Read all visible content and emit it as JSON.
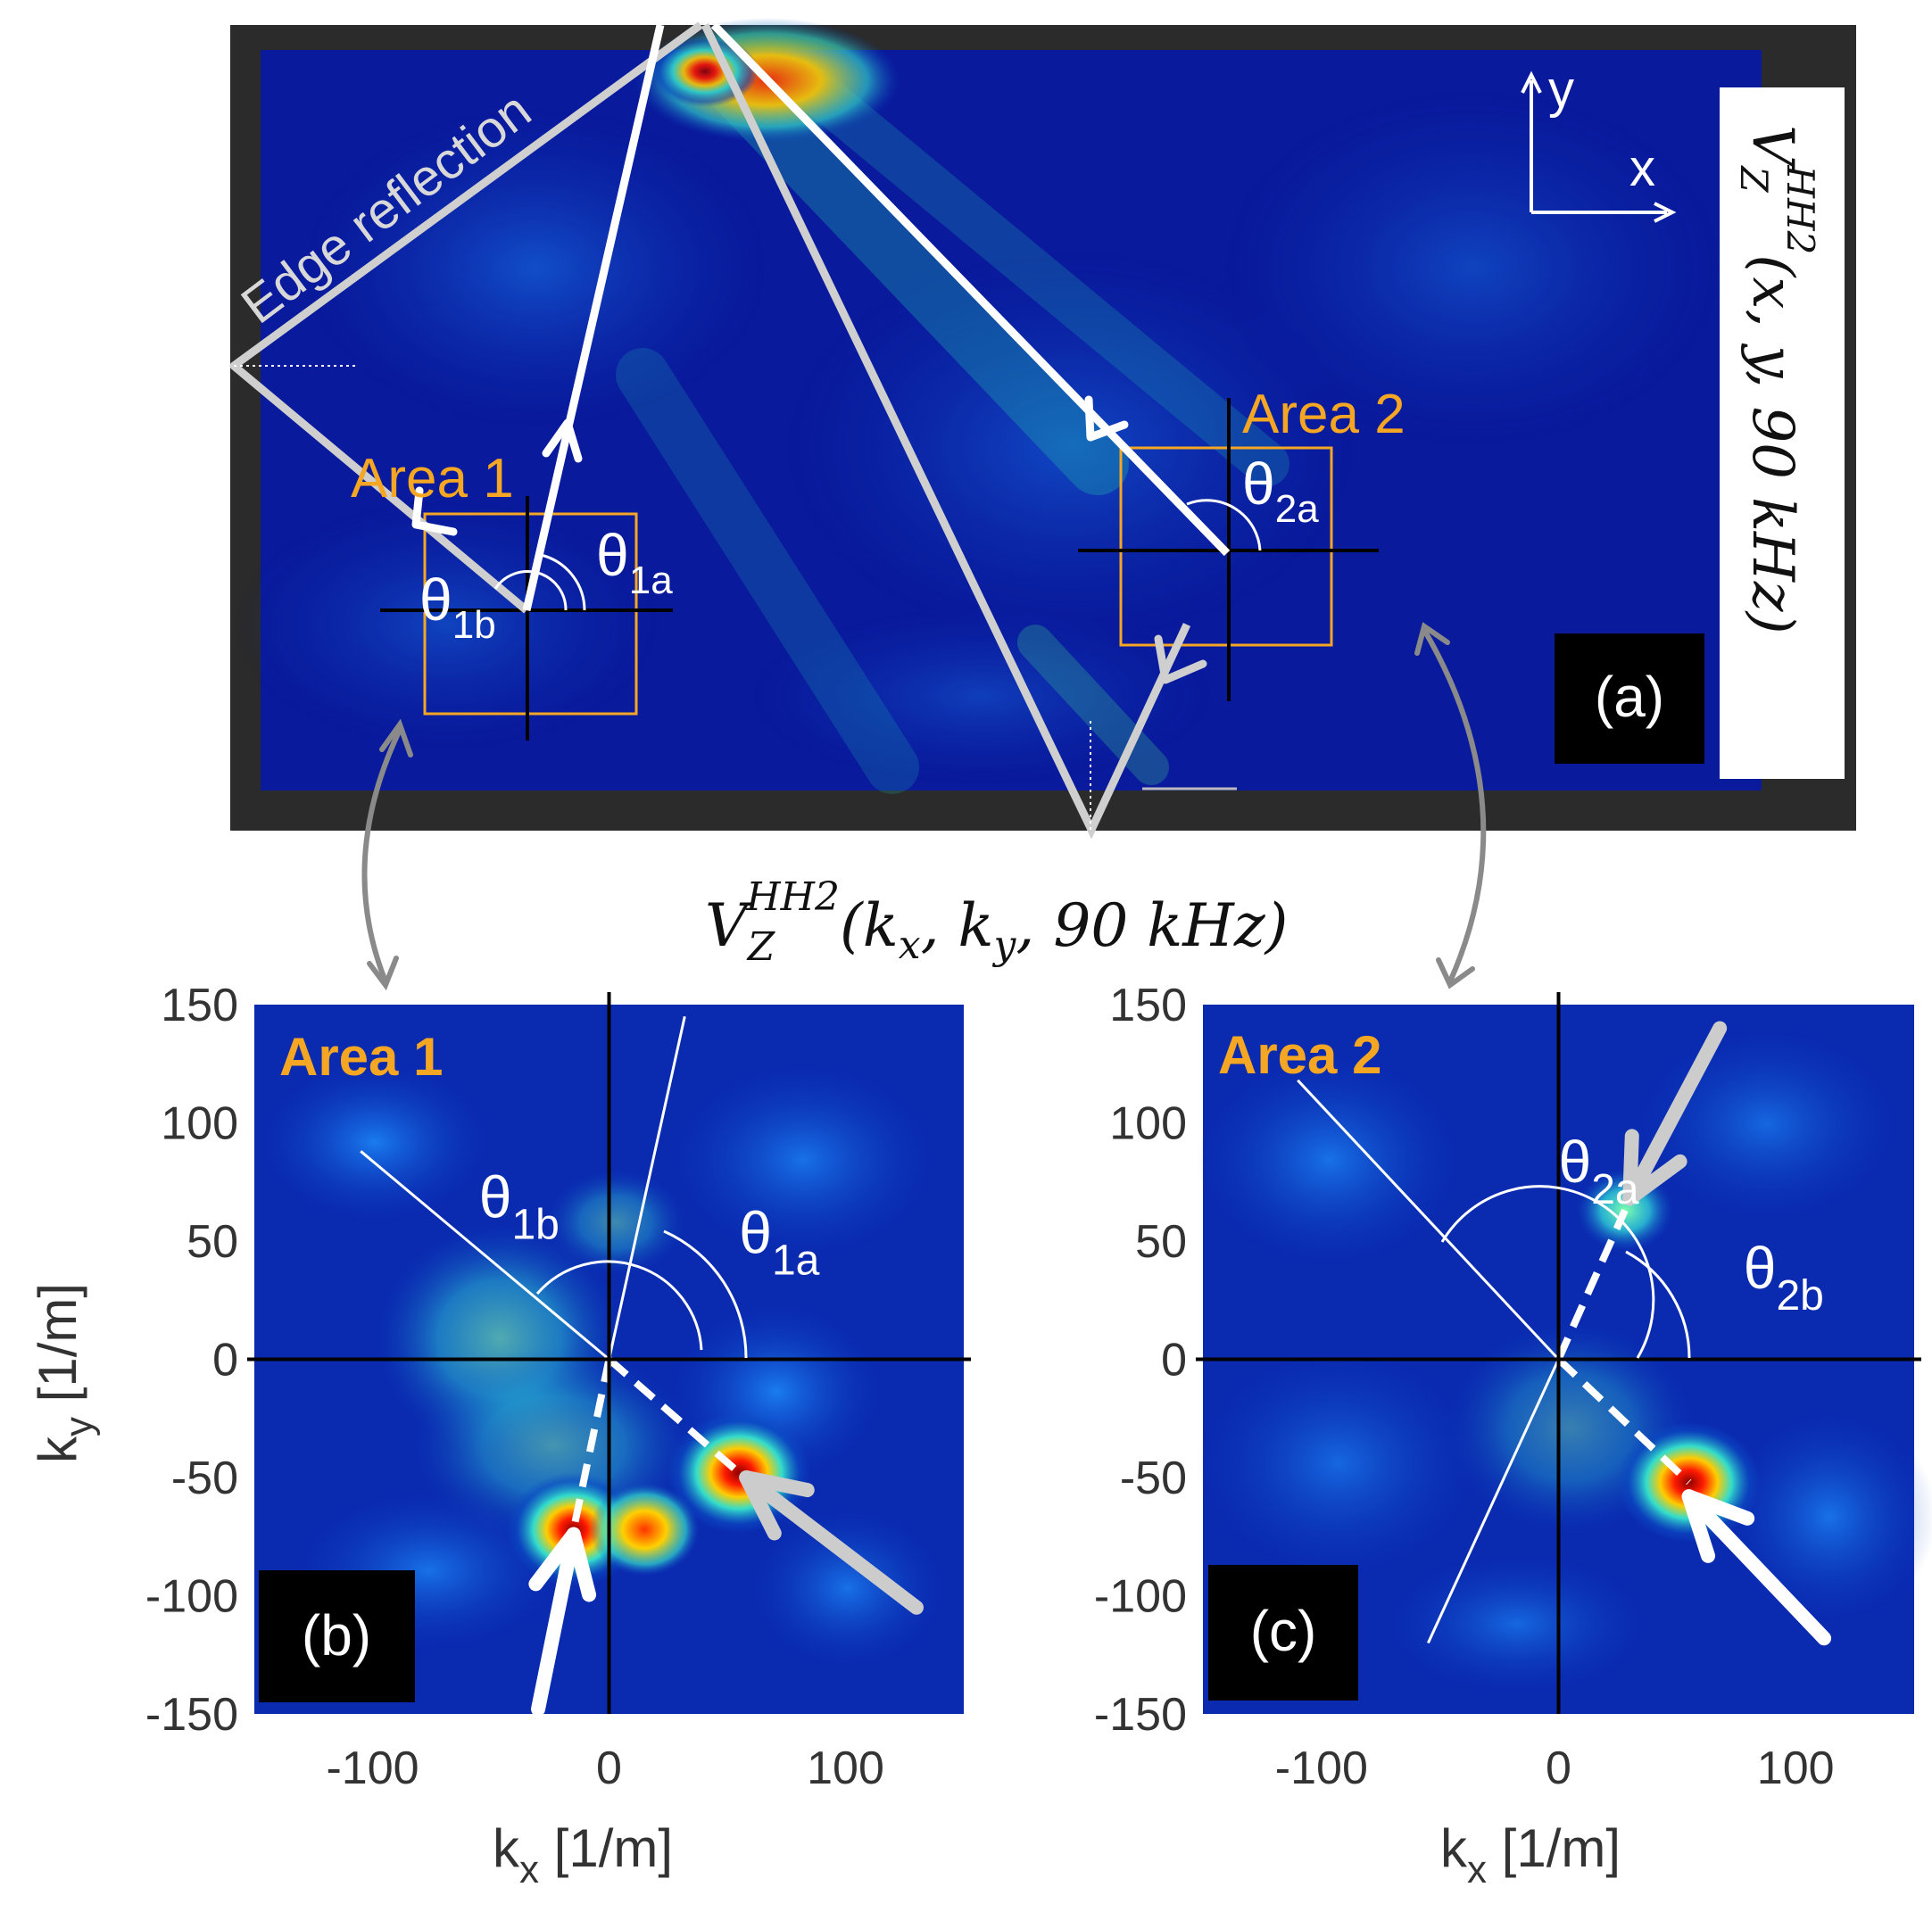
{
  "panel_a": {
    "label": "(a)",
    "formula_main": "V",
    "formula_sub": "Z",
    "formula_sup": "HH2",
    "formula_args": "(x, y, 90 kHz)",
    "edge_reflection": "Edge reflection",
    "area1": "Area 1",
    "area2": "Area 2",
    "axis_x": "x",
    "axis_y": "y",
    "theta_1a": "θ",
    "theta_1a_sub": "1a",
    "theta_1b": "θ",
    "theta_1b_sub": "1b",
    "theta_2a": "θ",
    "theta_2a_sub": "2a"
  },
  "middle_formula": {
    "main": "V",
    "sub": "Z",
    "sup": "HH2",
    "args": "(k",
    "arg_x_sub": "x",
    "sep": ", k",
    "arg_y_sub": "y",
    "tail": ", 90 kHz)"
  },
  "colors": {
    "bg_dark": "#00008f",
    "accent_orange": "#f5a623",
    "arrow_white": "#ffffff",
    "arrow_grey": "#cccccc",
    "frame": "#2b2b2b"
  },
  "chart_data": [
    {
      "type": "heatmap",
      "panel": "(b)",
      "title": "Area 1",
      "xlabel": "k",
      "xlabel_sub": "x",
      "xlabel_unit": " [1/m]",
      "ylabel": "k",
      "ylabel_sub": "y",
      "ylabel_unit": " [1/m]",
      "xlim": [
        -150,
        150
      ],
      "ylim": [
        -150,
        150
      ],
      "xticks": [
        "-100",
        "0",
        "100"
      ],
      "xtick_values": [
        -100,
        0,
        100
      ],
      "yticks": [
        "150",
        "100",
        "50",
        "0",
        "-50",
        "-100",
        "-150"
      ],
      "ytick_values": [
        150,
        100,
        50,
        0,
        -50,
        -100,
        -150
      ],
      "peaks": [
        {
          "kx": 55,
          "ky": -48,
          "strength": 1.0
        },
        {
          "kx": -15,
          "ky": -72,
          "strength": 0.9
        },
        {
          "kx": 15,
          "ky": -72,
          "strength": 0.6
        }
      ],
      "theta_labels": [
        {
          "text": "θ",
          "sub": "1b",
          "kx": -55,
          "ky": 60
        },
        {
          "text": "θ",
          "sub": "1a",
          "kx": 55,
          "ky": 45
        }
      ],
      "lines": [
        {
          "from": [
            -105,
            88
          ],
          "to": [
            0,
            0
          ],
          "style": "solid"
        },
        {
          "from": [
            0,
            0
          ],
          "to": [
            32,
            145
          ],
          "style": "solid"
        },
        {
          "from": [
            0,
            0
          ],
          "to": [
            55,
            -48
          ],
          "style": "dashed"
        },
        {
          "from": [
            0,
            0
          ],
          "to": [
            -15,
            -72
          ],
          "style": "dashed"
        }
      ],
      "arrows": [
        {
          "from": [
            130,
            -105
          ],
          "to": [
            58,
            -50
          ],
          "color": "grey"
        },
        {
          "from": [
            -30,
            -148
          ],
          "to": [
            -15,
            -74
          ],
          "color": "white"
        }
      ]
    },
    {
      "type": "heatmap",
      "panel": "(c)",
      "title": "Area 2",
      "xlabel": "k",
      "xlabel_sub": "x",
      "xlabel_unit": " [1/m]",
      "xlim": [
        -150,
        150
      ],
      "ylim": [
        -150,
        150
      ],
      "xticks": [
        "-100",
        "0",
        "100"
      ],
      "xtick_values": [
        -100,
        0,
        100
      ],
      "yticks": [
        "150",
        "100",
        "50",
        "0",
        "-50",
        "-100",
        "-150"
      ],
      "ytick_values": [
        150,
        100,
        50,
        0,
        -50,
        -100,
        -150
      ],
      "peaks": [
        {
          "kx": 55,
          "ky": -52,
          "strength": 1.0
        },
        {
          "kx": 28,
          "ky": 63,
          "strength": 0.45
        }
      ],
      "theta_labels": [
        {
          "text": "θ",
          "sub": "2a",
          "kx": 0,
          "ky": 75
        },
        {
          "text": "θ",
          "sub": "2b",
          "kx": 78,
          "ky": 30
        }
      ],
      "lines": [
        {
          "from": [
            -110,
            118
          ],
          "to": [
            0,
            0
          ],
          "style": "solid"
        },
        {
          "from": [
            0,
            0
          ],
          "to": [
            -55,
            -120
          ],
          "style": "solid"
        },
        {
          "from": [
            0,
            0
          ],
          "to": [
            28,
            63
          ],
          "style": "dashed"
        },
        {
          "from": [
            0,
            0
          ],
          "to": [
            55,
            -52
          ],
          "style": "dashed"
        }
      ],
      "arrows": [
        {
          "from": [
            112,
            -118
          ],
          "to": [
            55,
            -58
          ],
          "color": "white"
        },
        {
          "from": [
            68,
            140
          ],
          "to": [
            30,
            68
          ],
          "color": "grey"
        }
      ]
    }
  ]
}
